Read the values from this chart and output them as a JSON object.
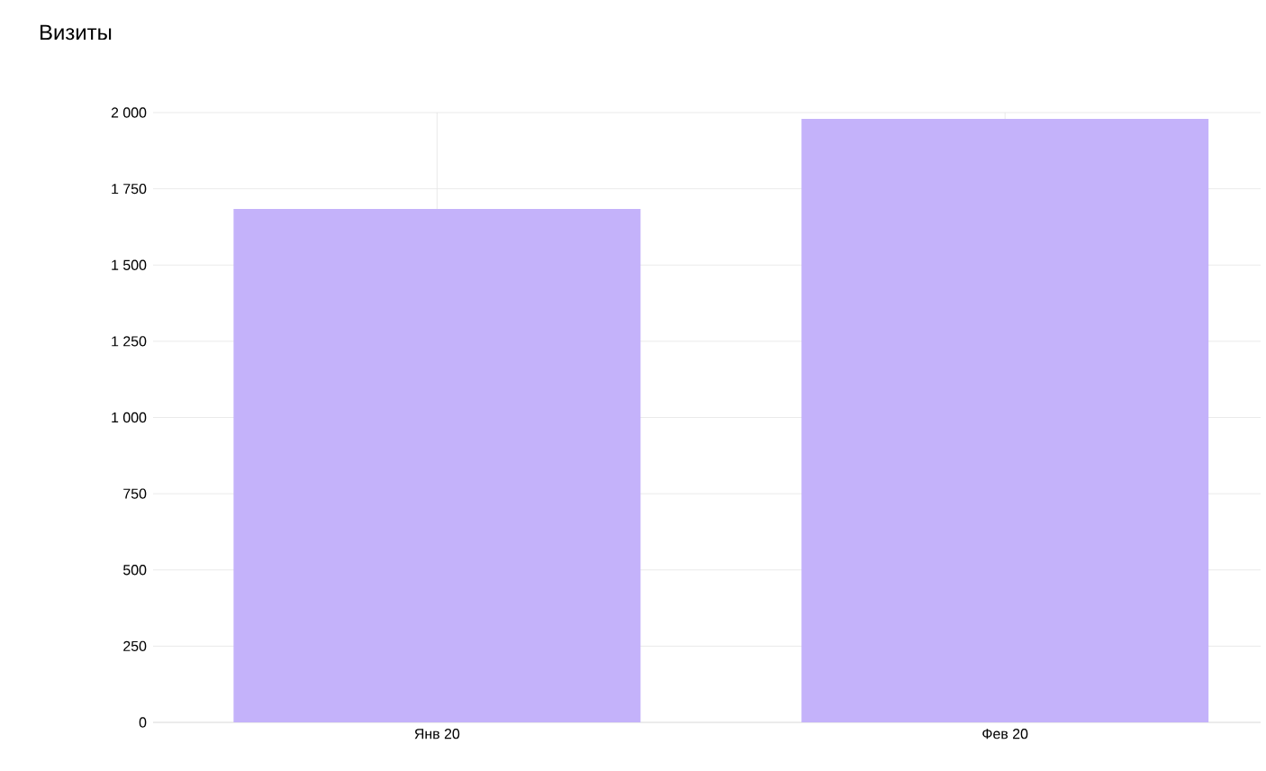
{
  "chart_data": {
    "type": "bar",
    "title": "Визиты",
    "categories": [
      "Янв 20",
      "Фев 20"
    ],
    "values": [
      1684,
      1979
    ],
    "color": "#c4b2fa",
    "ylim": [
      0,
      2000
    ],
    "yticks": [
      0,
      250,
      500,
      750,
      {
        "value": 1000,
        "label": "1 000"
      },
      {
        "value": 1250,
        "label": "1 250"
      },
      {
        "value": 1500,
        "label": "1 500"
      },
      {
        "value": 1750,
        "label": "1 750"
      },
      {
        "value": 2000,
        "label": "2 000"
      }
    ],
    "grid": true
  }
}
